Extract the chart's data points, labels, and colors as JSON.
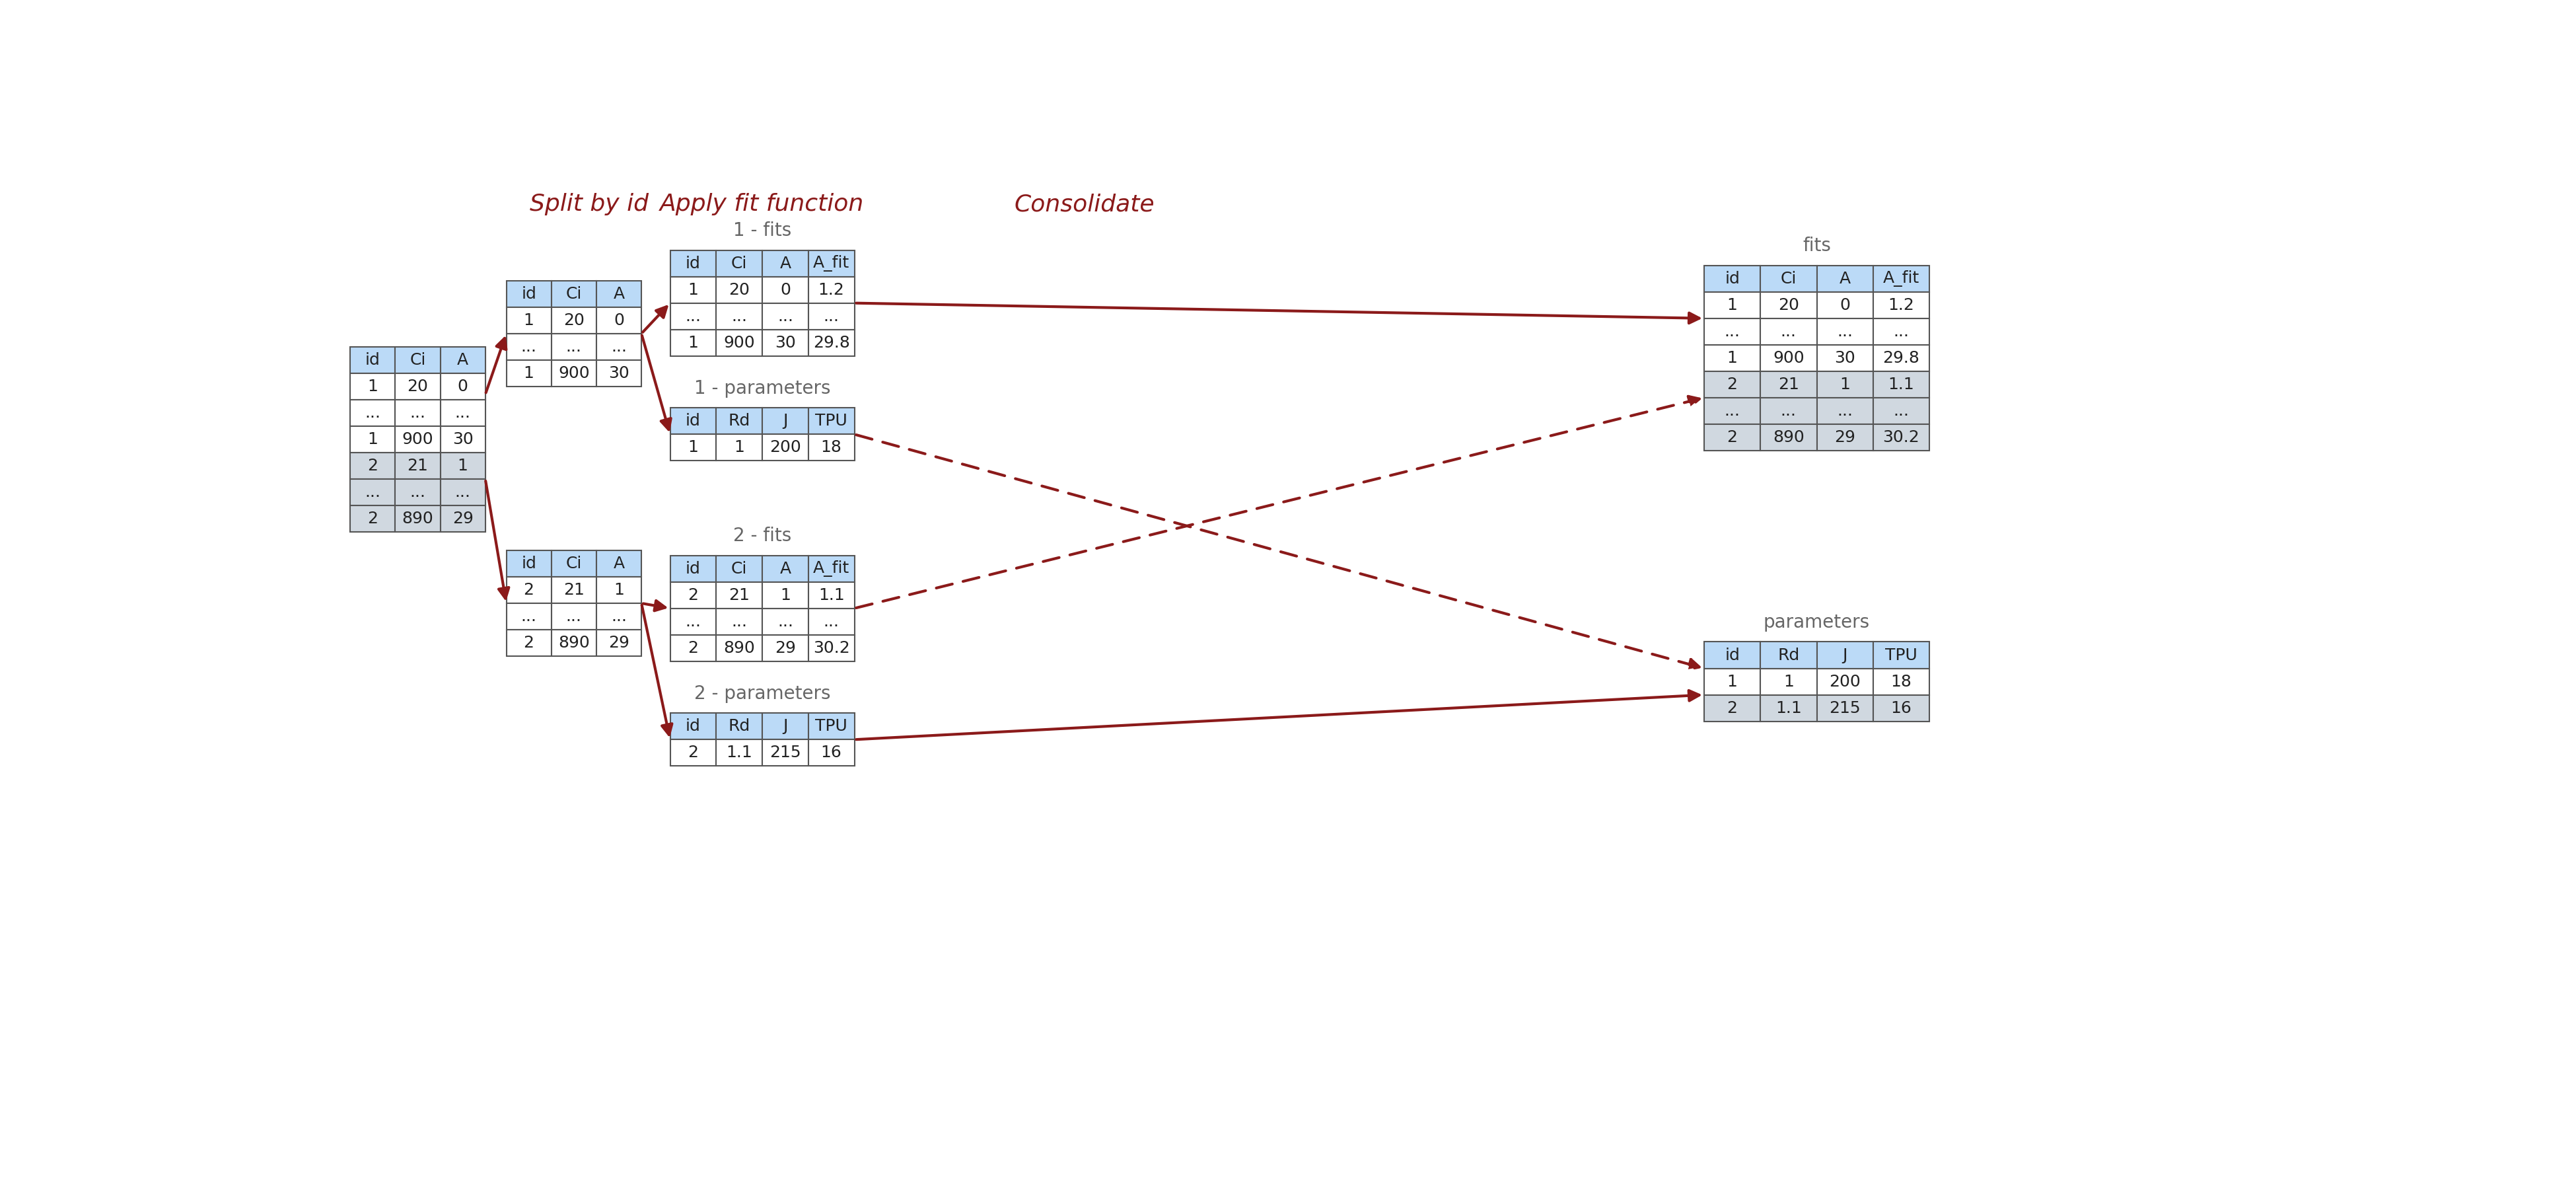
{
  "bg_color": "#ffffff",
  "arrow_color": "#8B1A1A",
  "header_color": "#BBDAF7",
  "row_color_white": "#ffffff",
  "row_color_gray": "#D0D8E0",
  "border_color": "#555555",
  "text_color": "#222222",
  "label_color": "#666666",
  "title_split": "Split by id",
  "title_apply": "Apply fit function",
  "title_consolidate": "Consolidate",
  "main_table": {
    "cols": [
      "id",
      "Ci",
      "A"
    ],
    "rows": [
      [
        "1",
        "20",
        "0"
      ],
      [
        "...",
        "...",
        "..."
      ],
      [
        "1",
        "900",
        "30"
      ],
      [
        "2",
        "21",
        "1"
      ],
      [
        "...",
        "...",
        "..."
      ],
      [
        "2",
        "890",
        "29"
      ]
    ],
    "row_colors": [
      "white",
      "white",
      "white",
      "gray",
      "gray",
      "gray"
    ]
  },
  "split_table1": {
    "cols": [
      "id",
      "Ci",
      "A"
    ],
    "rows": [
      [
        "1",
        "20",
        "0"
      ],
      [
        "...",
        "...",
        "..."
      ],
      [
        "1",
        "900",
        "30"
      ]
    ],
    "row_colors": [
      "white",
      "white",
      "white"
    ]
  },
  "split_table2": {
    "cols": [
      "id",
      "Ci",
      "A"
    ],
    "rows": [
      [
        "2",
        "21",
        "1"
      ],
      [
        "...",
        "...",
        "..."
      ],
      [
        "2",
        "890",
        "29"
      ]
    ],
    "row_colors": [
      "white",
      "white",
      "white"
    ]
  },
  "fits1_table": {
    "label": "1 - fits",
    "cols": [
      "id",
      "Ci",
      "A",
      "A_fit"
    ],
    "rows": [
      [
        "1",
        "20",
        "0",
        "1.2"
      ],
      [
        "...",
        "...",
        "...",
        "..."
      ],
      [
        "1",
        "900",
        "30",
        "29.8"
      ]
    ],
    "row_colors": [
      "white",
      "white",
      "white"
    ]
  },
  "params1_table": {
    "label": "1 - parameters",
    "cols": [
      "id",
      "Rd",
      "J",
      "TPU"
    ],
    "rows": [
      [
        "1",
        "1",
        "200",
        "18"
      ]
    ],
    "row_colors": [
      "white"
    ]
  },
  "fits2_table": {
    "label": "2 - fits",
    "cols": [
      "id",
      "Ci",
      "A",
      "A_fit"
    ],
    "rows": [
      [
        "2",
        "21",
        "1",
        "1.1"
      ],
      [
        "...",
        "...",
        "...",
        "..."
      ],
      [
        "2",
        "890",
        "29",
        "30.2"
      ]
    ],
    "row_colors": [
      "white",
      "white",
      "white"
    ]
  },
  "params2_table": {
    "label": "2 - parameters",
    "cols": [
      "id",
      "Rd",
      "J",
      "TPU"
    ],
    "rows": [
      [
        "2",
        "1.1",
        "215",
        "16"
      ]
    ],
    "row_colors": [
      "white"
    ]
  },
  "cons_fits_table": {
    "label": "fits",
    "cols": [
      "id",
      "Ci",
      "A",
      "A_fit"
    ],
    "rows": [
      [
        "1",
        "20",
        "0",
        "1.2"
      ],
      [
        "...",
        "...",
        "...",
        "..."
      ],
      [
        "1",
        "900",
        "30",
        "29.8"
      ],
      [
        "2",
        "21",
        "1",
        "1.1"
      ],
      [
        "...",
        "...",
        "...",
        "..."
      ],
      [
        "2",
        "890",
        "29",
        "30.2"
      ]
    ],
    "row_colors": [
      "white",
      "white",
      "white",
      "gray",
      "gray",
      "gray"
    ]
  },
  "cons_params_table": {
    "label": "parameters",
    "cols": [
      "id",
      "Rd",
      "J",
      "TPU"
    ],
    "rows": [
      [
        "1",
        "1",
        "200",
        "18"
      ],
      [
        "2",
        "1.1",
        "215",
        "16"
      ]
    ],
    "row_colors": [
      "white",
      "gray"
    ]
  }
}
